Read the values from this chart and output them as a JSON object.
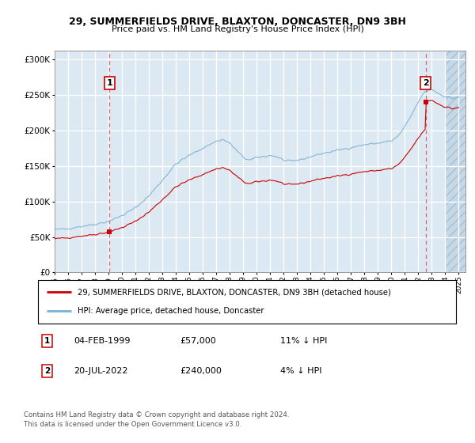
{
  "title": "29, SUMMERFIELDS DRIVE, BLAXTON, DONCASTER, DN9 3BH",
  "subtitle": "Price paid vs. HM Land Registry's House Price Index (HPI)",
  "legend_line1": "29, SUMMERFIELDS DRIVE, BLAXTON, DONCASTER, DN9 3BH (detached house)",
  "legend_line2": "HPI: Average price, detached house, Doncaster",
  "annotation1_date": "04-FEB-1999",
  "annotation1_price": "£57,000",
  "annotation1_hpi": "11% ↓ HPI",
  "annotation1_year": 1999.083,
  "annotation1_value": 57000,
  "annotation2_date": "20-JUL-2022",
  "annotation2_price": "£240,000",
  "annotation2_hpi": "4% ↓ HPI",
  "annotation2_year": 2022.542,
  "annotation2_value": 240000,
  "ytick_labels": [
    "£0",
    "£50K",
    "£100K",
    "£150K",
    "£200K",
    "£250K",
    "£300K"
  ],
  "ytick_values": [
    0,
    50000,
    100000,
    150000,
    200000,
    250000,
    300000
  ],
  "ylim": [
    0,
    312000
  ],
  "xlim_start": 1995.0,
  "xlim_end": 2025.5,
  "background_color": "#dce8f2",
  "red_line_color": "#cc0000",
  "blue_line_color": "#7ab0d4",
  "grid_color": "#ffffff",
  "vline_color": "#dd4444",
  "box_color": "#cc0000",
  "footer": "Contains HM Land Registry data © Crown copyright and database right 2024.\nThis data is licensed under the Open Government Licence v3.0."
}
